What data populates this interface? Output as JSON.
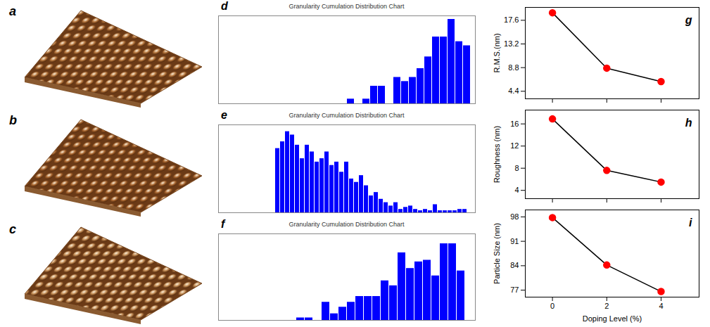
{
  "chart_data": [
    {
      "type": "image",
      "panel_label": "a",
      "color": "#b5743a",
      "tick_labels": false
    },
    {
      "type": "image",
      "panel_label": "b",
      "color": "#a8642c",
      "tick_labels": false
    },
    {
      "type": "image",
      "panel_label": "c",
      "color": "#c08850",
      "tick_labels": false
    },
    {
      "type": "bar",
      "panel_label": "d",
      "title": "Granularity Cumulation Distribution Chart",
      "color": "#0000ff",
      "tick_labels": false,
      "grid": false,
      "categories": [
        null,
        null,
        null,
        null,
        null,
        null,
        null,
        null,
        null,
        null,
        null,
        null,
        null,
        null,
        null,
        null,
        null,
        null,
        null,
        null,
        null,
        null,
        null,
        null,
        null,
        null,
        null,
        null,
        null,
        null,
        null,
        null
      ],
      "values": [
        0,
        0,
        0,
        0,
        0,
        0,
        0,
        0,
        0,
        0,
        0,
        0,
        0,
        0,
        0,
        0,
        0.8,
        0,
        0.8,
        3,
        3,
        0,
        4.5,
        3.8,
        4.5,
        6,
        8,
        11.4,
        11.4,
        14.4,
        10.6,
        9.9
      ],
      "ylim": [
        0,
        15
      ]
    },
    {
      "type": "bar",
      "panel_label": "e",
      "title": "Granularity Cumulation Distribution Chart",
      "color": "#0000ff",
      "tick_labels": false,
      "grid": false,
      "categories": [
        null,
        null,
        null,
        null,
        null,
        null,
        null,
        null,
        null,
        null,
        null,
        null,
        null,
        null,
        null,
        null,
        null,
        null,
        null,
        null,
        null,
        null,
        null,
        null,
        null,
        null,
        null,
        null,
        null,
        null,
        null,
        null,
        null,
        null,
        null,
        null,
        null,
        null,
        null,
        null,
        null,
        null,
        null,
        null,
        null,
        null,
        null,
        null,
        null
      ],
      "values": [
        0,
        0,
        0,
        0,
        0,
        0,
        0,
        0,
        0,
        0,
        9.5,
        10.5,
        12,
        11.5,
        10,
        8,
        10,
        9,
        7.5,
        8,
        9,
        7,
        7.5,
        6,
        7.5,
        5,
        4.5,
        5.5,
        4,
        2.5,
        3,
        2,
        1.5,
        1,
        1.5,
        0.5,
        0.8,
        1,
        0.5,
        0.3,
        0.5,
        0.3,
        1.2,
        0.3,
        0.3,
        0.3,
        0.3,
        0.5,
        0.5
      ],
      "ylim": [
        0,
        13
      ]
    },
    {
      "type": "bar",
      "panel_label": "f",
      "title": "Granularity Cumulation Distribution Chart",
      "color": "#0000ff",
      "tick_labels": false,
      "grid": false,
      "categories": [
        null,
        null,
        null,
        null,
        null,
        null,
        null,
        null,
        null,
        null,
        null,
        null,
        null,
        null,
        null,
        null,
        null,
        null,
        null,
        null,
        null,
        null,
        null,
        null,
        null,
        null,
        null,
        null
      ],
      "values": [
        0,
        0,
        0,
        0,
        0,
        0,
        0,
        0,
        0.3,
        0.3,
        0,
        2.2,
        0.8,
        1.6,
        2.2,
        2.9,
        2.9,
        2.9,
        4.8,
        4.2,
        8.2,
        6.3,
        7.1,
        7.3,
        5.4,
        9.3,
        9.3,
        6.0
      ],
      "ylim": [
        0,
        10.5
      ]
    },
    {
      "type": "line",
      "panel_label": "g",
      "x": [
        0,
        2,
        4
      ],
      "values": [
        19.0,
        8.7,
        6.2
      ],
      "color": "#ff0000",
      "marker": "circle",
      "ylabel": "R.M.S.(nm)",
      "xlim": [
        -1,
        5.4
      ],
      "xticks": [
        0,
        2,
        4
      ],
      "ylim": [
        3,
        20
      ],
      "yticks": [
        4.4,
        8.8,
        13.2,
        17.6
      ],
      "tick_labels": "y",
      "grid": false
    },
    {
      "type": "line",
      "panel_label": "h",
      "x": [
        0,
        2,
        4
      ],
      "values": [
        16.9,
        7.6,
        5.5
      ],
      "color": "#ff0000",
      "marker": "circle",
      "ylabel": "Roughness (nm)",
      "xlim": [
        -1,
        5.4
      ],
      "xticks": [
        0,
        2,
        4
      ],
      "ylim": [
        2.5,
        18.5
      ],
      "yticks": [
        4,
        8,
        12,
        16
      ],
      "tick_labels": "y",
      "grid": false
    },
    {
      "type": "line",
      "panel_label": "i",
      "x": [
        0,
        2,
        4
      ],
      "values": [
        97.8,
        84.2,
        76.6
      ],
      "color": "#ff0000",
      "marker": "circle",
      "xlabel": "Doping Level (%)",
      "ylabel": "Particle Size (nm)",
      "xlim": [
        -1,
        5.4
      ],
      "xticks": [
        0,
        2,
        4
      ],
      "ylim": [
        75,
        100
      ],
      "yticks": [
        77,
        84,
        91,
        98
      ],
      "grid": false
    }
  ]
}
